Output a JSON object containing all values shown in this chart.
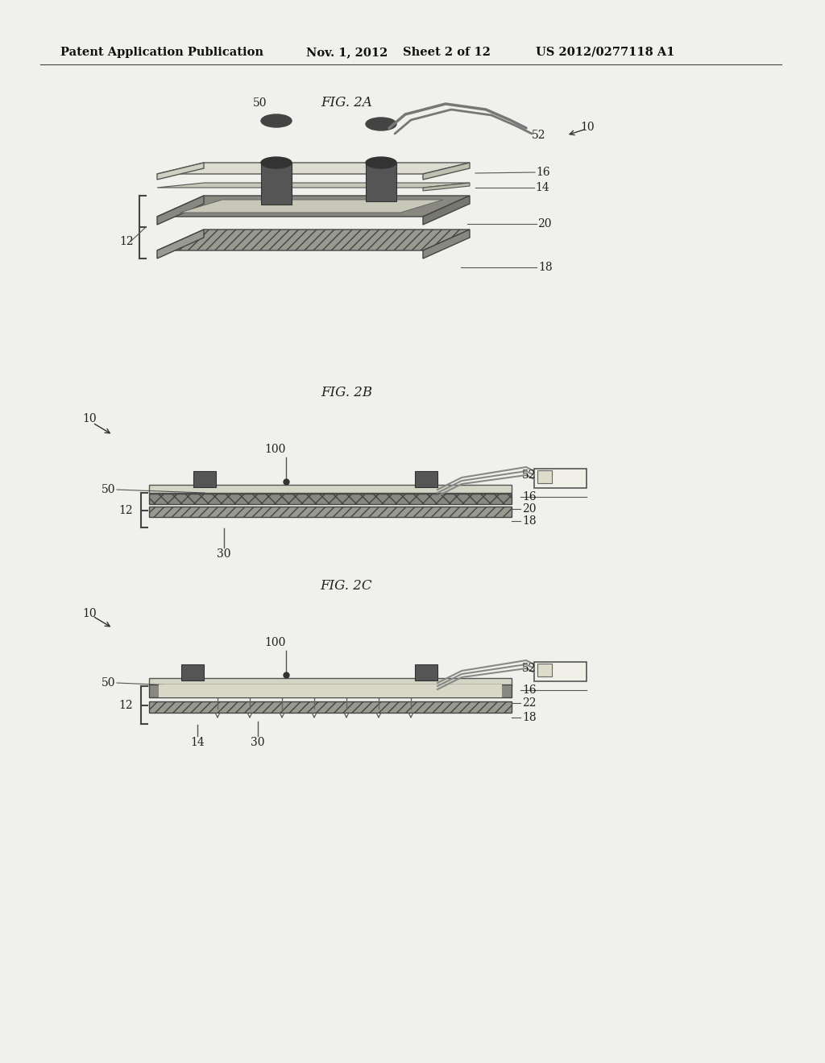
{
  "bg_color": "#f0f0ec",
  "header_text": "Patent Application Publication",
  "header_date": "Nov. 1, 2012",
  "header_sheet": "Sheet 2 of 12",
  "header_number": "US 2012/0277118 A1",
  "fig2a_title": "FIG. 2A",
  "fig2b_title": "FIG. 2B",
  "fig2c_title": "FIG. 2C",
  "label_color": "#222222",
  "dark_gray": "#444444",
  "medium_gray": "#888888",
  "light_gray": "#bbbbbb",
  "very_light_gray": "#dddddd"
}
